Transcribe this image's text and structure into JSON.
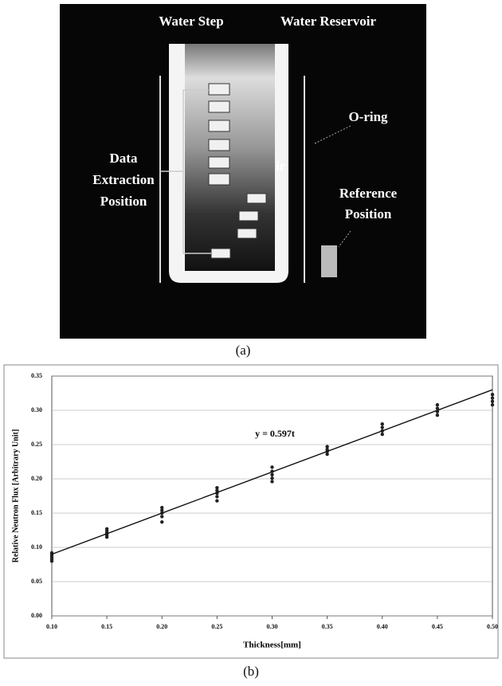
{
  "figure_a": {
    "labels": {
      "water_step": "Water Step",
      "water_reservoir": "Water Reservoir",
      "o_ring": "O-ring",
      "data_extraction": [
        "Data",
        "Extraction",
        "Position"
      ],
      "air": "ir",
      "reference": [
        "Reference",
        "Position"
      ]
    },
    "caption": "(a)"
  },
  "caption_b": "(b)",
  "chart_data": {
    "type": "scatter",
    "annotation": "y = 0.597t",
    "xlabel": "Thickness[mm]",
    "ylabel": "Relative Neutron Flux [Arbitrary Unit]",
    "grid": true,
    "xlim": [
      0.1,
      0.5
    ],
    "ylim": [
      0,
      0.35
    ],
    "xticks": [
      {
        "value": 0.1,
        "label": "0.10"
      },
      {
        "value": 0.15,
        "label": "0.15"
      },
      {
        "value": 0.2,
        "label": "0.20"
      },
      {
        "value": 0.25,
        "label": "0.25"
      },
      {
        "value": 0.3,
        "label": "0.30"
      },
      {
        "value": 0.35,
        "label": "0.35"
      },
      {
        "value": 0.4,
        "label": "0.40"
      },
      {
        "value": 0.45,
        "label": "0.45"
      },
      {
        "value": 0.5,
        "label": "0.50"
      }
    ],
    "yticks": [
      {
        "value": 0,
        "label": "0.00"
      },
      0.05,
      {
        "value": 0.1,
        "label": "0.10"
      },
      0.15,
      {
        "value": 0.2,
        "label": "0.20"
      },
      0.25,
      {
        "value": 0.3,
        "label": "0.30"
      },
      0.35
    ],
    "series": [
      {
        "kind": "scatter",
        "color": "#222222",
        "x": [
          0.1,
          0.1,
          0.1,
          0.1,
          0.1,
          0.15,
          0.15,
          0.15,
          0.15,
          0.15,
          0.2,
          0.2,
          0.2,
          0.2,
          0.2,
          0.25,
          0.25,
          0.25,
          0.25,
          0.25,
          0.3,
          0.3,
          0.3,
          0.3,
          0.3,
          0.35,
          0.35,
          0.35,
          0.35,
          0.4,
          0.4,
          0.4,
          0.4,
          0.45,
          0.45,
          0.45,
          0.45,
          0.5,
          0.5,
          0.5,
          0.5
        ],
        "values": [
          0.08,
          0.083,
          0.086,
          0.089,
          0.092,
          0.115,
          0.118,
          0.121,
          0.124,
          0.127,
          0.137,
          0.145,
          0.15,
          0.154,
          0.158,
          0.168,
          0.174,
          0.179,
          0.183,
          0.187,
          0.196,
          0.201,
          0.206,
          0.211,
          0.217,
          0.236,
          0.24,
          0.243,
          0.247,
          0.265,
          0.27,
          0.275,
          0.28,
          0.293,
          0.298,
          0.303,
          0.308,
          0.308,
          0.313,
          0.318,
          0.323
        ]
      },
      {
        "kind": "line",
        "color": "#111111",
        "x": [
          0.1,
          0.5
        ],
        "values": [
          0.09,
          0.33
        ]
      }
    ]
  }
}
